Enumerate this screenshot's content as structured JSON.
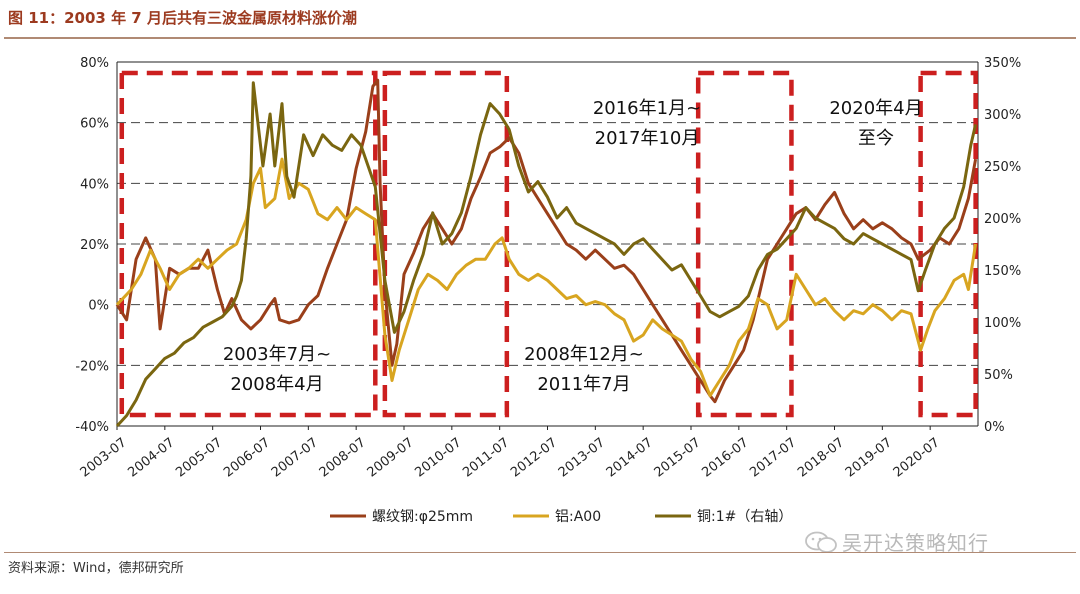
{
  "header": {
    "title": "图 11：2003 年 7 月后共有三波金属原材料涨价潮"
  },
  "footer": {
    "source": "资料来源：Wind，德邦研究所",
    "watermark": "吴开达策略知行"
  },
  "colors": {
    "rebar": "#9a3f1a",
    "aluminum": "#d8a520",
    "copper": "#7a6610",
    "box": "#cc1f1f"
  },
  "chart_data": {
    "type": "line",
    "title": "",
    "x_ticks": [
      "2003-07",
      "2004-07",
      "2005-07",
      "2006-07",
      "2007-07",
      "2008-07",
      "2009-07",
      "2010-07",
      "2011-07",
      "2012-07",
      "2013-07",
      "2014-07",
      "2015-07",
      "2016-07",
      "2017-07",
      "2018-07",
      "2019-07",
      "2020-07"
    ],
    "left_axis": {
      "ylim": [
        -40,
        80
      ],
      "ticks": [
        "80%",
        "60%",
        "40%",
        "20%",
        "0%",
        "-20%",
        "-40%"
      ]
    },
    "right_axis": {
      "ylim": [
        0,
        350
      ],
      "ticks": [
        "350%",
        "300%",
        "250%",
        "200%",
        "150%",
        "100%",
        "50%",
        "0%"
      ]
    },
    "x_range": [
      2003.5,
      2021.5
    ],
    "series": [
      {
        "name": "螺纹钢:φ25mm",
        "axis": "left",
        "color_key": "rebar",
        "points": [
          [
            2003.5,
            0
          ],
          [
            2003.7,
            -5
          ],
          [
            2003.9,
            15
          ],
          [
            2004.1,
            22
          ],
          [
            2004.3,
            15
          ],
          [
            2004.4,
            -8
          ],
          [
            2004.6,
            12
          ],
          [
            2004.8,
            10
          ],
          [
            2005.0,
            12
          ],
          [
            2005.2,
            12
          ],
          [
            2005.4,
            18
          ],
          [
            2005.6,
            5
          ],
          [
            2005.75,
            -3
          ],
          [
            2005.9,
            2
          ],
          [
            2006.1,
            -5
          ],
          [
            2006.3,
            -8
          ],
          [
            2006.5,
            -5
          ],
          [
            2006.7,
            0
          ],
          [
            2006.8,
            2
          ],
          [
            2006.9,
            -5
          ],
          [
            2007.1,
            -6
          ],
          [
            2007.3,
            -5
          ],
          [
            2007.5,
            0
          ],
          [
            2007.7,
            3
          ],
          [
            2007.9,
            12
          ],
          [
            2008.1,
            20
          ],
          [
            2008.3,
            28
          ],
          [
            2008.5,
            45
          ],
          [
            2008.7,
            57
          ],
          [
            2008.85,
            72
          ],
          [
            2008.95,
            74
          ],
          [
            2009.0,
            40
          ],
          [
            2009.1,
            5
          ],
          [
            2009.25,
            -20
          ],
          [
            2009.35,
            -13
          ],
          [
            2009.5,
            10
          ],
          [
            2009.7,
            17
          ],
          [
            2009.9,
            25
          ],
          [
            2010.1,
            30
          ],
          [
            2010.3,
            25
          ],
          [
            2010.5,
            20
          ],
          [
            2010.7,
            25
          ],
          [
            2010.9,
            35
          ],
          [
            2011.1,
            42
          ],
          [
            2011.3,
            50
          ],
          [
            2011.5,
            52
          ],
          [
            2011.7,
            55
          ],
          [
            2011.9,
            50
          ],
          [
            2012.1,
            40
          ],
          [
            2012.3,
            35
          ],
          [
            2012.5,
            30
          ],
          [
            2012.7,
            25
          ],
          [
            2012.9,
            20
          ],
          [
            2013.1,
            18
          ],
          [
            2013.3,
            15
          ],
          [
            2013.5,
            18
          ],
          [
            2013.7,
            15
          ],
          [
            2013.9,
            12
          ],
          [
            2014.1,
            13
          ],
          [
            2014.3,
            10
          ],
          [
            2014.5,
            5
          ],
          [
            2014.7,
            0
          ],
          [
            2014.9,
            -5
          ],
          [
            2015.1,
            -10
          ],
          [
            2015.3,
            -15
          ],
          [
            2015.5,
            -20
          ],
          [
            2015.7,
            -25
          ],
          [
            2015.9,
            -30
          ],
          [
            2016.0,
            -32
          ],
          [
            2016.2,
            -25
          ],
          [
            2016.4,
            -20
          ],
          [
            2016.6,
            -15
          ],
          [
            2016.8,
            -5
          ],
          [
            2016.95,
            5
          ],
          [
            2017.1,
            15
          ],
          [
            2017.3,
            20
          ],
          [
            2017.5,
            25
          ],
          [
            2017.7,
            30
          ],
          [
            2017.9,
            32
          ],
          [
            2018.1,
            28
          ],
          [
            2018.3,
            33
          ],
          [
            2018.5,
            37
          ],
          [
            2018.7,
            30
          ],
          [
            2018.9,
            25
          ],
          [
            2019.1,
            28
          ],
          [
            2019.3,
            25
          ],
          [
            2019.5,
            27
          ],
          [
            2019.7,
            25
          ],
          [
            2019.9,
            22
          ],
          [
            2020.1,
            20
          ],
          [
            2020.25,
            15
          ],
          [
            2020.5,
            18
          ],
          [
            2020.7,
            22
          ],
          [
            2020.9,
            20
          ],
          [
            2021.1,
            25
          ],
          [
            2021.3,
            35
          ],
          [
            2021.45,
            48
          ]
        ]
      },
      {
        "name": "铝:A00",
        "axis": "left",
        "color_key": "aluminum",
        "points": [
          [
            2003.5,
            0
          ],
          [
            2003.8,
            5
          ],
          [
            2004.0,
            10
          ],
          [
            2004.2,
            18
          ],
          [
            2004.4,
            12
          ],
          [
            2004.6,
            5
          ],
          [
            2004.8,
            10
          ],
          [
            2005.0,
            12
          ],
          [
            2005.2,
            15
          ],
          [
            2005.4,
            12
          ],
          [
            2005.6,
            15
          ],
          [
            2005.8,
            18
          ],
          [
            2006.0,
            20
          ],
          [
            2006.2,
            28
          ],
          [
            2006.35,
            40
          ],
          [
            2006.5,
            45
          ],
          [
            2006.6,
            32
          ],
          [
            2006.8,
            35
          ],
          [
            2006.95,
            48
          ],
          [
            2007.1,
            35
          ],
          [
            2007.3,
            40
          ],
          [
            2007.5,
            38
          ],
          [
            2007.7,
            30
          ],
          [
            2007.9,
            28
          ],
          [
            2008.1,
            32
          ],
          [
            2008.3,
            28
          ],
          [
            2008.5,
            32
          ],
          [
            2008.7,
            30
          ],
          [
            2008.9,
            28
          ],
          [
            2009.1,
            -10
          ],
          [
            2009.25,
            -25
          ],
          [
            2009.4,
            -15
          ],
          [
            2009.6,
            -5
          ],
          [
            2009.8,
            5
          ],
          [
            2010.0,
            10
          ],
          [
            2010.2,
            8
          ],
          [
            2010.4,
            5
          ],
          [
            2010.6,
            10
          ],
          [
            2010.8,
            13
          ],
          [
            2011.0,
            15
          ],
          [
            2011.2,
            15
          ],
          [
            2011.4,
            20
          ],
          [
            2011.55,
            22
          ],
          [
            2011.7,
            15
          ],
          [
            2011.9,
            10
          ],
          [
            2012.1,
            8
          ],
          [
            2012.3,
            10
          ],
          [
            2012.5,
            8
          ],
          [
            2012.7,
            5
          ],
          [
            2012.9,
            2
          ],
          [
            2013.1,
            3
          ],
          [
            2013.3,
            0
          ],
          [
            2013.5,
            1
          ],
          [
            2013.7,
            0
          ],
          [
            2013.9,
            -3
          ],
          [
            2014.1,
            -5
          ],
          [
            2014.3,
            -12
          ],
          [
            2014.5,
            -10
          ],
          [
            2014.7,
            -5
          ],
          [
            2014.9,
            -8
          ],
          [
            2015.1,
            -10
          ],
          [
            2015.3,
            -12
          ],
          [
            2015.5,
            -18
          ],
          [
            2015.7,
            -22
          ],
          [
            2015.9,
            -30
          ],
          [
            2016.1,
            -25
          ],
          [
            2016.3,
            -20
          ],
          [
            2016.5,
            -12
          ],
          [
            2016.7,
            -8
          ],
          [
            2016.9,
            2
          ],
          [
            2017.1,
            0
          ],
          [
            2017.3,
            -8
          ],
          [
            2017.5,
            -5
          ],
          [
            2017.7,
            10
          ],
          [
            2017.9,
            5
          ],
          [
            2018.1,
            0
          ],
          [
            2018.3,
            2
          ],
          [
            2018.5,
            -2
          ],
          [
            2018.7,
            -5
          ],
          [
            2018.9,
            -2
          ],
          [
            2019.1,
            -3
          ],
          [
            2019.3,
            0
          ],
          [
            2019.5,
            -2
          ],
          [
            2019.7,
            -5
          ],
          [
            2019.9,
            -2
          ],
          [
            2020.1,
            -3
          ],
          [
            2020.3,
            -15
          ],
          [
            2020.45,
            -8
          ],
          [
            2020.6,
            -2
          ],
          [
            2020.8,
            2
          ],
          [
            2021.0,
            8
          ],
          [
            2021.2,
            10
          ],
          [
            2021.3,
            5
          ],
          [
            2021.45,
            20
          ]
        ]
      },
      {
        "name": "铜:1#（右轴）",
        "axis": "right",
        "color_key": "copper",
        "points": [
          [
            2003.5,
            0
          ],
          [
            2003.7,
            10
          ],
          [
            2003.9,
            25
          ],
          [
            2004.1,
            45
          ],
          [
            2004.3,
            55
          ],
          [
            2004.5,
            65
          ],
          [
            2004.7,
            70
          ],
          [
            2004.9,
            80
          ],
          [
            2005.1,
            85
          ],
          [
            2005.3,
            95
          ],
          [
            2005.5,
            100
          ],
          [
            2005.7,
            105
          ],
          [
            2005.9,
            115
          ],
          [
            2006.0,
            125
          ],
          [
            2006.1,
            140
          ],
          [
            2006.2,
            180
          ],
          [
            2006.3,
            240
          ],
          [
            2006.35,
            330
          ],
          [
            2006.45,
            290
          ],
          [
            2006.55,
            250
          ],
          [
            2006.7,
            300
          ],
          [
            2006.8,
            250
          ],
          [
            2006.95,
            310
          ],
          [
            2007.05,
            240
          ],
          [
            2007.2,
            220
          ],
          [
            2007.4,
            280
          ],
          [
            2007.6,
            260
          ],
          [
            2007.8,
            280
          ],
          [
            2008.0,
            270
          ],
          [
            2008.2,
            265
          ],
          [
            2008.4,
            280
          ],
          [
            2008.6,
            270
          ],
          [
            2008.75,
            250
          ],
          [
            2008.9,
            230
          ],
          [
            2009.1,
            140
          ],
          [
            2009.3,
            90
          ],
          [
            2009.5,
            110
          ],
          [
            2009.7,
            140
          ],
          [
            2009.9,
            165
          ],
          [
            2010.1,
            205
          ],
          [
            2010.3,
            175
          ],
          [
            2010.5,
            185
          ],
          [
            2010.7,
            205
          ],
          [
            2010.9,
            240
          ],
          [
            2011.1,
            280
          ],
          [
            2011.3,
            310
          ],
          [
            2011.5,
            300
          ],
          [
            2011.7,
            285
          ],
          [
            2011.9,
            250
          ],
          [
            2012.1,
            225
          ],
          [
            2012.3,
            235
          ],
          [
            2012.5,
            220
          ],
          [
            2012.7,
            200
          ],
          [
            2012.9,
            210
          ],
          [
            2013.1,
            195
          ],
          [
            2013.3,
            190
          ],
          [
            2013.5,
            185
          ],
          [
            2013.7,
            180
          ],
          [
            2013.9,
            175
          ],
          [
            2014.1,
            165
          ],
          [
            2014.3,
            175
          ],
          [
            2014.5,
            180
          ],
          [
            2014.7,
            170
          ],
          [
            2014.9,
            160
          ],
          [
            2015.1,
            150
          ],
          [
            2015.3,
            155
          ],
          [
            2015.5,
            140
          ],
          [
            2015.7,
            125
          ],
          [
            2015.9,
            110
          ],
          [
            2016.1,
            105
          ],
          [
            2016.3,
            110
          ],
          [
            2016.5,
            115
          ],
          [
            2016.7,
            125
          ],
          [
            2016.9,
            150
          ],
          [
            2017.1,
            165
          ],
          [
            2017.3,
            170
          ],
          [
            2017.5,
            180
          ],
          [
            2017.7,
            190
          ],
          [
            2017.9,
            210
          ],
          [
            2018.1,
            200
          ],
          [
            2018.3,
            195
          ],
          [
            2018.5,
            190
          ],
          [
            2018.7,
            180
          ],
          [
            2018.9,
            175
          ],
          [
            2019.1,
            185
          ],
          [
            2019.3,
            180
          ],
          [
            2019.5,
            175
          ],
          [
            2019.7,
            170
          ],
          [
            2019.9,
            165
          ],
          [
            2020.1,
            160
          ],
          [
            2020.25,
            130
          ],
          [
            2020.4,
            150
          ],
          [
            2020.6,
            175
          ],
          [
            2020.8,
            190
          ],
          [
            2021.0,
            200
          ],
          [
            2021.2,
            230
          ],
          [
            2021.35,
            270
          ],
          [
            2021.45,
            290
          ]
        ]
      }
    ],
    "periods": [
      {
        "start": 2003.6,
        "end": 2008.9,
        "label_lines": [
          "2003年7月~",
          "2008年4月"
        ]
      },
      {
        "start": 2009.1,
        "end": 2011.65,
        "label_lines": [
          "2008年12月~",
          "2011年7月"
        ]
      },
      {
        "start": 2015.65,
        "end": 2017.6,
        "label_lines": [
          "2016年1月~",
          "2017年10月"
        ]
      },
      {
        "start": 2020.3,
        "end": 2021.45,
        "label_lines": [
          "2020年4月",
          "至今"
        ]
      }
    ],
    "legend": [
      "螺纹钢:φ25mm",
      "铝:A00",
      "铜:1#（右轴）"
    ],
    "legend_position": "bottom",
    "grid": "horizontal-dashed"
  }
}
